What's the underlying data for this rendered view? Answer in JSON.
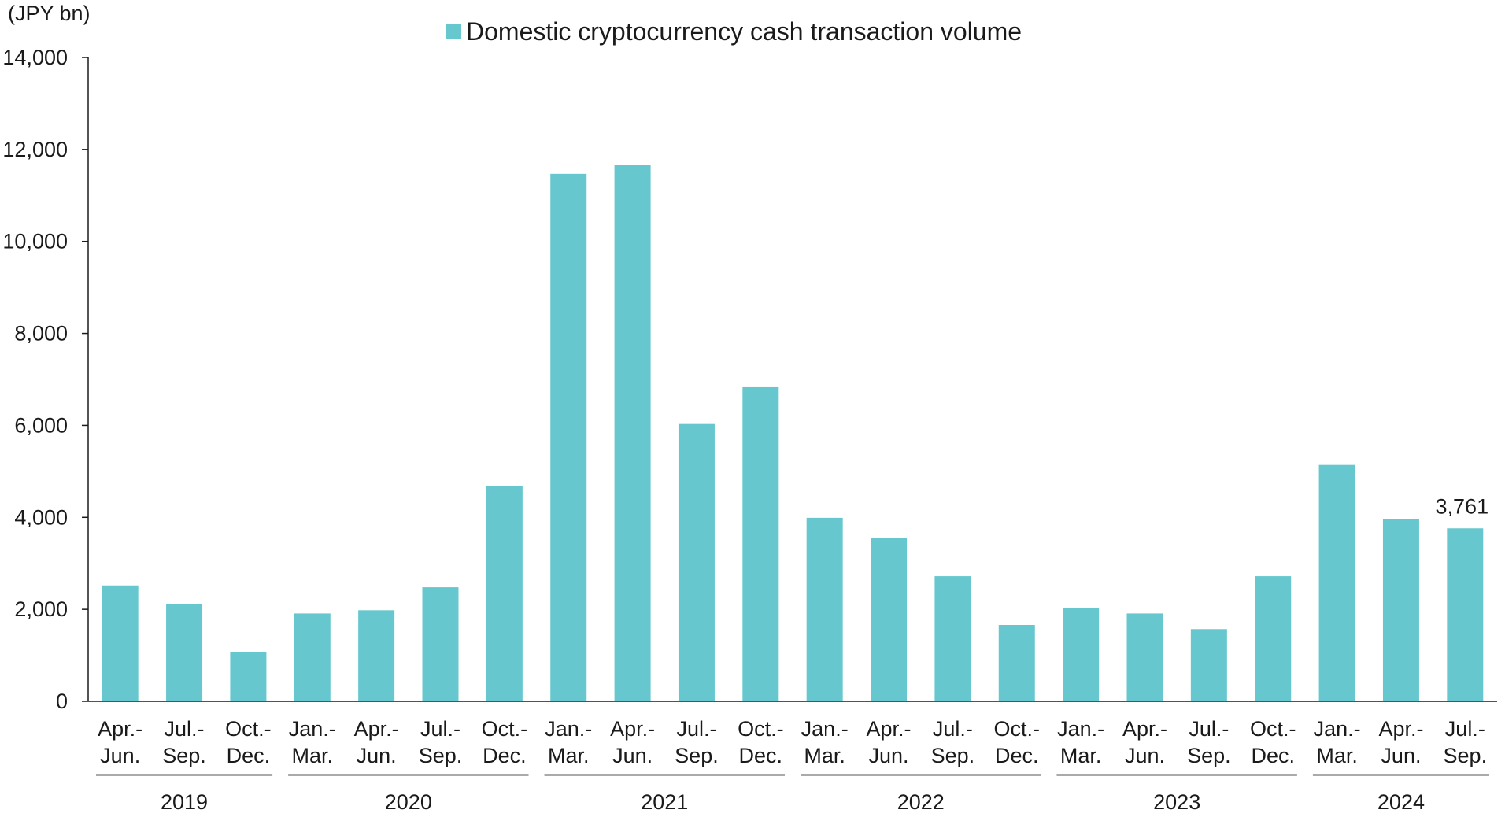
{
  "chart_data": {
    "type": "bar",
    "unit_label": "(JPY bn)",
    "legend": {
      "position": "top-center",
      "entries": [
        "Domestic cryptocurrency cash transaction volume"
      ]
    },
    "y_axis": {
      "range": [
        0,
        14000
      ],
      "ticks": [
        "0",
        "2,000",
        "4,000",
        "6,000",
        "8,000",
        "10,000",
        "12,000",
        "14,000"
      ],
      "tick_values": [
        0,
        2000,
        4000,
        6000,
        8000,
        10000,
        12000,
        14000
      ]
    },
    "grid": false,
    "bar_color": "#66c8ce",
    "categories": [
      {
        "line1": "Apr.-",
        "line2": "Jun."
      },
      {
        "line1": "Jul.-",
        "line2": "Sep."
      },
      {
        "line1": "Oct.-",
        "line2": "Dec."
      },
      {
        "line1": "Jan.-",
        "line2": "Mar."
      },
      {
        "line1": "Apr.-",
        "line2": "Jun."
      },
      {
        "line1": "Jul.-",
        "line2": "Sep."
      },
      {
        "line1": "Oct.-",
        "line2": "Dec."
      },
      {
        "line1": "Jan.-",
        "line2": "Mar."
      },
      {
        "line1": "Apr.-",
        "line2": "Jun."
      },
      {
        "line1": "Jul.-",
        "line2": "Sep."
      },
      {
        "line1": "Oct.-",
        "line2": "Dec."
      },
      {
        "line1": "Jan.-",
        "line2": "Mar."
      },
      {
        "line1": "Apr.-",
        "line2": "Jun."
      },
      {
        "line1": "Jul.-",
        "line2": "Sep."
      },
      {
        "line1": "Oct.-",
        "line2": "Dec."
      },
      {
        "line1": "Jan.-",
        "line2": "Mar."
      },
      {
        "line1": "Apr.-",
        "line2": "Jun."
      },
      {
        "line1": "Jul.-",
        "line2": "Sep."
      },
      {
        "line1": "Oct.-",
        "line2": "Dec."
      },
      {
        "line1": "Jan.-",
        "line2": "Mar."
      },
      {
        "line1": "Apr.-",
        "line2": "Jun."
      },
      {
        "line1": "Jul.-",
        "line2": "Sep."
      }
    ],
    "year_groups": [
      {
        "label": "2019",
        "count": 3
      },
      {
        "label": "2020",
        "count": 4
      },
      {
        "label": "2021",
        "count": 4
      },
      {
        "label": "2022",
        "count": 4
      },
      {
        "label": "2023",
        "count": 4
      },
      {
        "label": "2024",
        "count": 3
      }
    ],
    "series": [
      {
        "values": [
          2520,
          2120,
          1070,
          1910,
          1980,
          2480,
          4680,
          11470,
          11660,
          6030,
          6830,
          3990,
          3560,
          2720,
          1660,
          2030,
          1910,
          1570,
          2720,
          5140,
          3960,
          3761
        ]
      }
    ],
    "data_labels": [
      {
        "index": 21,
        "text": "3,761"
      }
    ]
  }
}
